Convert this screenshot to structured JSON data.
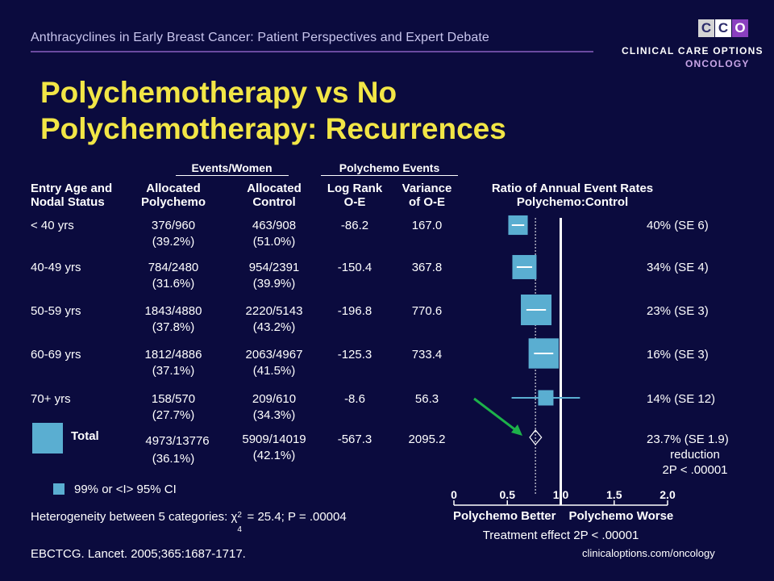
{
  "header": {
    "subtitle": "Anthracyclines in Early Breast Cancer: Patient Perspectives and Expert Debate",
    "logo_mark": "CCO",
    "logo_line1": "CLINICAL CARE OPTIONS",
    "logo_line2": "ONCOLOGY",
    "title_line1": "Polychemotherapy vs No",
    "title_line2": "Polychemotherapy: Recurrences"
  },
  "table": {
    "group_events": "Events/Women",
    "group_polychemo": "Polychemo Events",
    "col_entry": [
      "Entry Age and",
      "Nodal Status"
    ],
    "col_alloc_poly": [
      "Allocated",
      "Polychemo"
    ],
    "col_alloc_ctrl": [
      "Allocated",
      "Control"
    ],
    "col_logrank": [
      "Log Rank",
      "O-E"
    ],
    "col_variance": [
      "Variance",
      "of O-E"
    ],
    "col_ratio": [
      "Ratio of Annual Event Rates",
      "Polychemo:Control"
    ],
    "rows": [
      {
        "label": "< 40 yrs",
        "poly": "376/960",
        "poly_pct": "(39.2%)",
        "ctrl": "463/908",
        "ctrl_pct": "(51.0%)",
        "oe": "-86.2",
        "var": "167.0",
        "reduction": "40% (SE 6)"
      },
      {
        "label": "40-49 yrs",
        "poly": "784/2480",
        "poly_pct": "(31.6%)",
        "ctrl": "954/2391",
        "ctrl_pct": "(39.9%)",
        "oe": "-150.4",
        "var": "367.8",
        "reduction": "34% (SE 4)"
      },
      {
        "label": "50-59 yrs",
        "poly": "1843/4880",
        "poly_pct": "(37.8%)",
        "ctrl": "2220/5143",
        "ctrl_pct": "(43.2%)",
        "oe": "-196.8",
        "var": "770.6",
        "reduction": "23% (SE 3)"
      },
      {
        "label": "60-69 yrs",
        "poly": "1812/4886",
        "poly_pct": "(37.1%)",
        "ctrl": "2063/4967",
        "ctrl_pct": "(41.5%)",
        "oe": "-125.3",
        "var": "733.4",
        "reduction": "16% (SE 3)"
      },
      {
        "label": "70+ yrs",
        "poly": "158/570",
        "poly_pct": "(27.7%)",
        "ctrl": "209/610",
        "ctrl_pct": "(34.3%)",
        "oe": "-8.6",
        "var": "56.3",
        "reduction": "14% (SE 12)"
      }
    ],
    "total": {
      "label": "Total",
      "poly": "4973/13776",
      "poly_pct": "(36.1%)",
      "ctrl": "5909/14019",
      "ctrl_pct": "(42.1%)",
      "oe": "-567.3",
      "var": "2095.2",
      "reduction": "23.7% (SE 1.9)",
      "reduction_word": "reduction",
      "p_value": "2P < .00001"
    }
  },
  "footer": {
    "ci_legend": "99% or <I> 95% CI",
    "heterogeneity_prefix": "Heterogeneity between 5 categories: χ",
    "heterogeneity_sup": "2",
    "heterogeneity_sub": "4",
    "heterogeneity_suffix": " = 25.4; P = .00004",
    "citation": "EBCTCG. Lancet. 2005;365:1687-1717.",
    "website": "clinicaloptions.com/oncology"
  },
  "colors": {
    "background": "#0b0b3e",
    "title": "#f2e646",
    "marker": "#5aaed1",
    "arrow": "#1db24a",
    "rule": "#6b4aa0"
  },
  "chart_data": {
    "type": "forest",
    "xlabel_left": "Polychemo Better",
    "xlabel_right": "Polychemo Worse",
    "treatment_effect": "Treatment effect 2P < .00001",
    "x_ticks": [
      "0",
      "0.5",
      "1.0",
      "1.5",
      "2.0"
    ],
    "x_tick_values": [
      0,
      0.5,
      1.0,
      1.5,
      2.0
    ],
    "xlim": [
      0,
      2.0
    ],
    "null_line": 1.0,
    "overall_line": 0.763,
    "categories": [
      "< 40 yrs",
      "40-49 yrs",
      "50-59 yrs",
      "60-69 yrs",
      "70+ yrs",
      "Total"
    ],
    "ratio": [
      0.6,
      0.66,
      0.77,
      0.84,
      0.86,
      0.763
    ],
    "ci99": [
      [
        0.56,
        0.64
      ],
      [
        0.55,
        0.77
      ],
      [
        0.68,
        0.86
      ],
      [
        0.75,
        0.93
      ],
      [
        0.54,
        1.18
      ],
      [
        0.71,
        0.82
      ]
    ],
    "marker": [
      "square",
      "square",
      "square",
      "square",
      "square",
      "diamond"
    ],
    "weight": [
      167.0,
      367.8,
      770.6,
      733.4,
      56.3,
      2095.2
    ]
  }
}
